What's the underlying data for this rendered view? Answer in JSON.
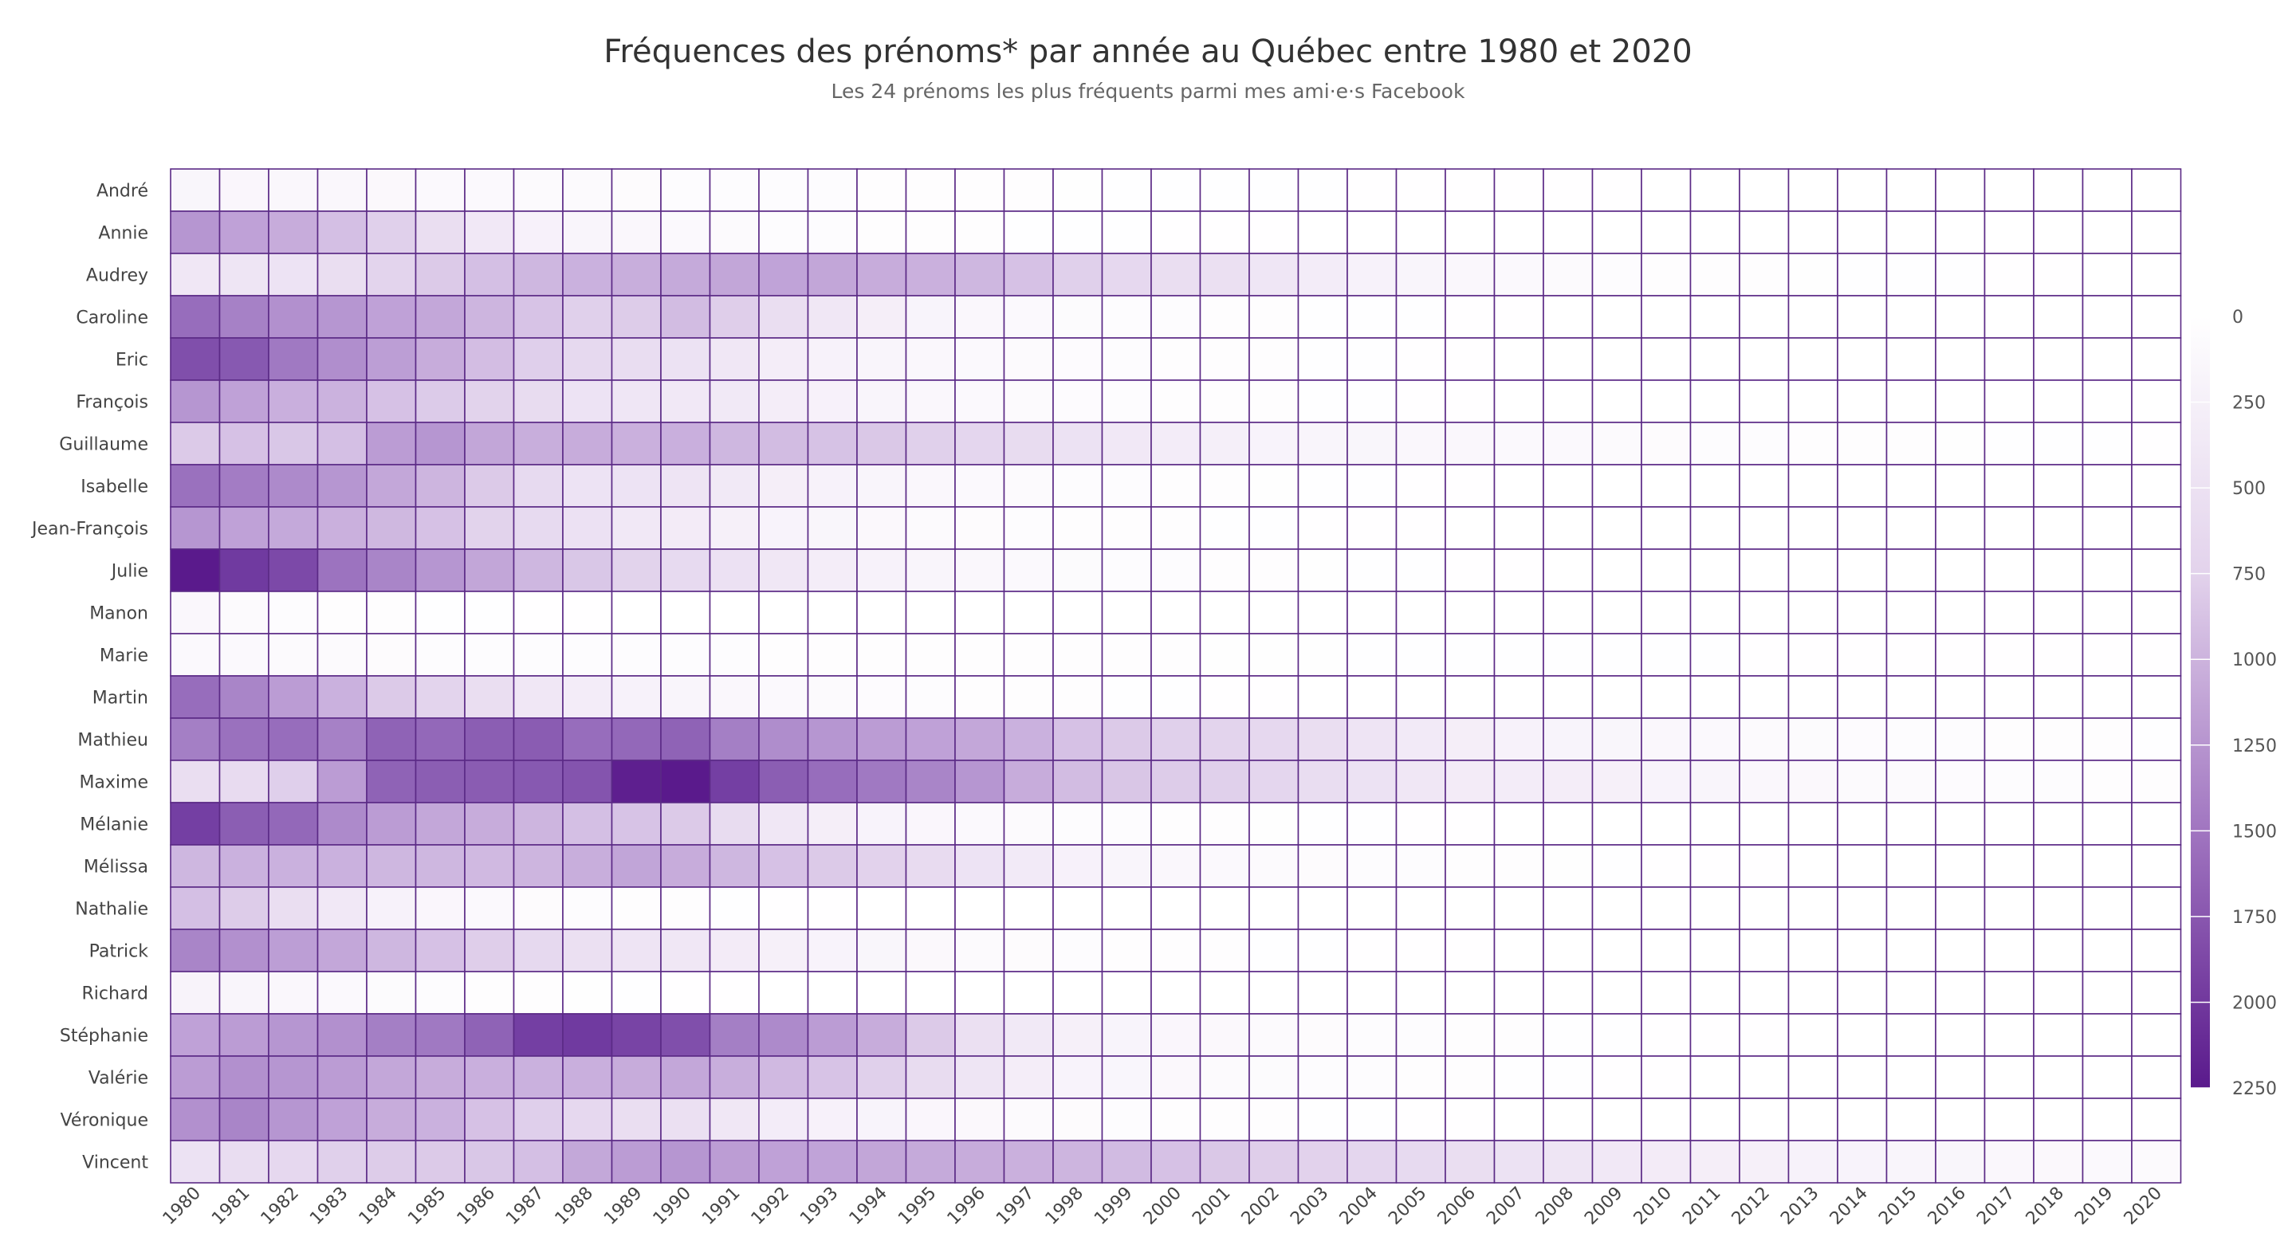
{
  "title": "Fréquences des prénoms* par année au Québec entre 1980 et 2020",
  "subtitle": "Les 24 prénoms les plus fréquents parmi mes ami·e·s Facebook",
  "colors": {
    "border": "#5b2a86",
    "low": "#ffffff",
    "high": "#5a1a8c"
  },
  "chart_data": {
    "type": "heatmap",
    "title": "Fréquences des prénoms* par année au Québec entre 1980 et 2020",
    "subtitle": "Les 24 prénoms les plus fréquents parmi mes ami·e·s Facebook",
    "x": [
      "1980",
      "1981",
      "1982",
      "1983",
      "1984",
      "1985",
      "1986",
      "1987",
      "1988",
      "1989",
      "1990",
      "1991",
      "1992",
      "1993",
      "1994",
      "1995",
      "1996",
      "1997",
      "1998",
      "1999",
      "2000",
      "2001",
      "2002",
      "2003",
      "2004",
      "2005",
      "2006",
      "2007",
      "2008",
      "2009",
      "2010",
      "2011",
      "2012",
      "2013",
      "2014",
      "2015",
      "2016",
      "2017",
      "2018",
      "2019",
      "2020"
    ],
    "y": [
      "André",
      "Annie",
      "Audrey",
      "Caroline",
      "Eric",
      "François",
      "Guillaume",
      "Isabelle",
      "Jean-François",
      "Julie",
      "Manon",
      "Marie",
      "Martin",
      "Mathieu",
      "Maxime",
      "Mélanie",
      "Mélissa",
      "Nathalie",
      "Patrick",
      "Richard",
      "Stéphanie",
      "Valérie",
      "Véronique",
      "Vincent"
    ],
    "colorscale": {
      "min": 0,
      "max": 2250,
      "ticks": [
        0,
        250,
        500,
        750,
        1000,
        1250,
        1500,
        1750,
        2000,
        2250
      ]
    },
    "grid": true,
    "legend": "colorbar-right",
    "z": [
      [
        160,
        150,
        140,
        130,
        120,
        110,
        100,
        90,
        80,
        70,
        60,
        55,
        50,
        45,
        40,
        35,
        30,
        28,
        25,
        22,
        20,
        18,
        16,
        15,
        14,
        13,
        12,
        11,
        10,
        9,
        8,
        8,
        7,
        7,
        6,
        6,
        5,
        5,
        4,
        4,
        4
      ],
      [
        1100,
        1000,
        900,
        720,
        560,
        420,
        320,
        230,
        170,
        130,
        100,
        80,
        60,
        48,
        40,
        32,
        26,
        22,
        18,
        15,
        12,
        10,
        9,
        8,
        7,
        6,
        5,
        5,
        4,
        4,
        3,
        3,
        3,
        2,
        2,
        2,
        2,
        2,
        1,
        1,
        1
      ],
      [
        330,
        350,
        370,
        420,
        520,
        620,
        720,
        800,
        850,
        880,
        920,
        960,
        980,
        960,
        900,
        860,
        800,
        700,
        560,
        480,
        420,
        400,
        340,
        280,
        220,
        180,
        140,
        110,
        80,
        60,
        40,
        35,
        30,
        25,
        20,
        20,
        15,
        12,
        10,
        8,
        6
      ],
      [
        1450,
        1280,
        1150,
        1100,
        1000,
        950,
        820,
        680,
        560,
        600,
        750,
        580,
        420,
        330,
        260,
        190,
        140,
        100,
        75,
        60,
        45,
        35,
        28,
        22,
        18,
        15,
        12,
        10,
        8,
        7,
        6,
        5,
        4,
        4,
        3,
        3,
        2,
        2,
        2,
        1,
        1
      ],
      [
        1750,
        1650,
        1350,
        1170,
        1030,
        900,
        740,
        570,
        470,
        430,
        380,
        330,
        270,
        220,
        180,
        140,
        110,
        80,
        65,
        50,
        40,
        32,
        26,
        20,
        16,
        13,
        10,
        8,
        6,
        5,
        4,
        4,
        3,
        3,
        2,
        2,
        2,
        1,
        1,
        1,
        1
      ],
      [
        1100,
        1000,
        870,
        840,
        700,
        610,
        530,
        440,
        370,
        340,
        320,
        310,
        270,
        230,
        180,
        140,
        110,
        80,
        65,
        50,
        40,
        32,
        26,
        20,
        16,
        13,
        10,
        8,
        6,
        5,
        4,
        4,
        3,
        3,
        2,
        2,
        2,
        1,
        1,
        1,
        1
      ],
      [
        620,
        700,
        650,
        720,
        1050,
        1100,
        960,
        880,
        900,
        860,
        870,
        800,
        750,
        690,
        640,
        560,
        500,
        440,
        380,
        320,
        280,
        250,
        200,
        170,
        160,
        130,
        140,
        110,
        100,
        90,
        70,
        60,
        50,
        40,
        35,
        30,
        25,
        20,
        18,
        15,
        12
      ],
      [
        1420,
        1320,
        1200,
        1100,
        950,
        820,
        620,
        460,
        370,
        370,
        360,
        310,
        260,
        220,
        180,
        140,
        110,
        80,
        60,
        48,
        38,
        30,
        24,
        19,
        15,
        12,
        10,
        8,
        6,
        5,
        4,
        4,
        3,
        3,
        2,
        2,
        2,
        1,
        1,
        1,
        1
      ],
      [
        1100,
        1000,
        930,
        860,
        790,
        700,
        530,
        460,
        390,
        320,
        290,
        240,
        200,
        160,
        120,
        90,
        70,
        55,
        42,
        34,
        27,
        22,
        18,
        14,
        11,
        9,
        7,
        6,
        5,
        4,
        3,
        3,
        2,
        2,
        2,
        1,
        1,
        1,
        1,
        1,
        1
      ],
      [
        2250,
        1950,
        1800,
        1400,
        1250,
        1100,
        960,
        800,
        650,
        530,
        460,
        390,
        330,
        270,
        220,
        170,
        130,
        100,
        75,
        60,
        48,
        38,
        30,
        24,
        19,
        15,
        12,
        10,
        8,
        7,
        6,
        5,
        4,
        4,
        3,
        3,
        2,
        2,
        2,
        1,
        1
      ],
      [
        130,
        90,
        60,
        40,
        30,
        22,
        16,
        12,
        9,
        7,
        5,
        4,
        3,
        3,
        2,
        2,
        2,
        1,
        1,
        1,
        1,
        1,
        1,
        1,
        1,
        0,
        0,
        0,
        0,
        0,
        0,
        0,
        0,
        0,
        0,
        0,
        0,
        0,
        0,
        0,
        0
      ],
      [
        110,
        100,
        90,
        80,
        70,
        60,
        55,
        50,
        48,
        46,
        45,
        44,
        42,
        40,
        38,
        36,
        34,
        32,
        30,
        28,
        26,
        25,
        24,
        23,
        22,
        21,
        20,
        19,
        18,
        17,
        16,
        15,
        14,
        13,
        12,
        12,
        11,
        10,
        10,
        9,
        9
      ],
      [
        1450,
        1250,
        1050,
        850,
        620,
        520,
        420,
        330,
        280,
        220,
        180,
        140,
        110,
        85,
        65,
        50,
        40,
        32,
        26,
        20,
        16,
        13,
        10,
        8,
        6,
        5,
        4,
        3,
        3,
        2,
        2,
        2,
        1,
        1,
        1,
        1,
        1,
        1,
        1,
        1,
        1
      ],
      [
        1300,
        1420,
        1450,
        1280,
        1550,
        1500,
        1600,
        1620,
        1450,
        1500,
        1550,
        1300,
        1180,
        1100,
        1050,
        1000,
        950,
        850,
        700,
        620,
        560,
        520,
        480,
        420,
        360,
        300,
        260,
        220,
        190,
        160,
        130,
        110,
        90,
        75,
        62,
        52,
        44,
        37,
        31,
        26,
        22
      ],
      [
        420,
        450,
        570,
        1050,
        1550,
        1600,
        1620,
        1650,
        1700,
        2200,
        2250,
        1900,
        1600,
        1450,
        1350,
        1250,
        1100,
        900,
        750,
        660,
        600,
        560,
        500,
        430,
        380,
        330,
        290,
        280,
        270,
        240,
        200,
        170,
        140,
        115,
        95,
        80,
        66,
        55,
        46,
        38,
        32
      ],
      [
        1900,
        1600,
        1500,
        1200,
        1050,
        950,
        900,
        820,
        720,
        680,
        620,
        440,
        330,
        260,
        200,
        150,
        110,
        80,
        60,
        48,
        38,
        30,
        24,
        19,
        15,
        12,
        10,
        8,
        6,
        5,
        4,
        4,
        3,
        3,
        2,
        2,
        2,
        1,
        1,
        1,
        1
      ],
      [
        800,
        850,
        850,
        850,
        800,
        800,
        780,
        820,
        880,
        970,
        900,
        800,
        700,
        620,
        540,
        450,
        370,
        300,
        230,
        180,
        140,
        110,
        88,
        70,
        56,
        45,
        36,
        29,
        23,
        18,
        14,
        11,
        9,
        7,
        6,
        5,
        4,
        3,
        3,
        2,
        2
      ],
      [
        720,
        600,
        420,
        320,
        220,
        150,
        100,
        70,
        50,
        36,
        26,
        19,
        14,
        11,
        8,
        6,
        5,
        4,
        3,
        2,
        2,
        2,
        1,
        1,
        1,
        1,
        1,
        0,
        0,
        0,
        0,
        0,
        0,
        0,
        0,
        0,
        0,
        0,
        0,
        0,
        0
      ],
      [
        1250,
        1150,
        1030,
        950,
        800,
        700,
        580,
        470,
        400,
        360,
        330,
        290,
        240,
        200,
        160,
        120,
        90,
        70,
        55,
        42,
        34,
        27,
        22,
        18,
        14,
        11,
        9,
        7,
        6,
        5,
        4,
        3,
        3,
        2,
        2,
        2,
        1,
        1,
        1,
        1,
        1
      ],
      [
        210,
        170,
        130,
        100,
        75,
        55,
        42,
        32,
        24,
        18,
        14,
        11,
        8,
        6,
        5,
        4,
        3,
        2,
        2,
        2,
        1,
        1,
        1,
        1,
        1,
        0,
        0,
        0,
        0,
        0,
        0,
        0,
        0,
        0,
        0,
        0,
        0,
        0,
        0,
        0,
        0
      ],
      [
        1000,
        1050,
        1100,
        1150,
        1300,
        1350,
        1550,
        1900,
        1950,
        1850,
        1750,
        1300,
        1200,
        1050,
        900,
        620,
        400,
        310,
        240,
        190,
        150,
        115,
        90,
        70,
        55,
        44,
        35,
        28,
        22,
        18,
        14,
        11,
        9,
        7,
        6,
        5,
        4,
        3,
        3,
        2,
        2
      ],
      [
        1050,
        1150,
        1100,
        1050,
        950,
        900,
        870,
        850,
        870,
        900,
        950,
        880,
        780,
        680,
        560,
        440,
        350,
        270,
        200,
        155,
        120,
        92,
        72,
        56,
        44,
        34,
        27,
        21,
        17,
        13,
        10,
        8,
        6,
        5,
        4,
        3,
        3,
        2,
        2,
        2,
        1
      ],
      [
        1150,
        1250,
        1100,
        1000,
        900,
        850,
        700,
        570,
        480,
        420,
        400,
        330,
        280,
        230,
        190,
        150,
        120,
        90,
        70,
        55,
        42,
        33,
        26,
        20,
        16,
        12,
        10,
        8,
        6,
        5,
        4,
        3,
        3,
        2,
        2,
        2,
        1,
        1,
        1,
        1,
        1
      ],
      [
        380,
        430,
        480,
        560,
        600,
        620,
        650,
        720,
        940,
        1050,
        1100,
        1040,
        1000,
        980,
        960,
        920,
        900,
        860,
        820,
        760,
        700,
        640,
        580,
        540,
        500,
        460,
        420,
        380,
        350,
        320,
        290,
        260,
        240,
        220,
        200,
        180,
        160,
        140,
        120,
        100,
        90
      ]
    ]
  }
}
